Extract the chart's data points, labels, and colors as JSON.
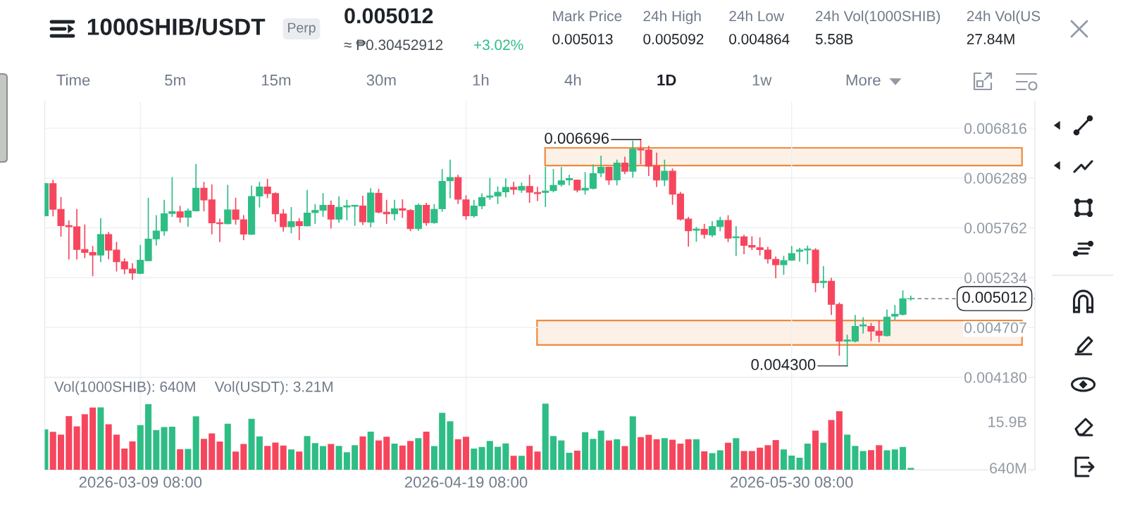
{
  "chart_data": [
    {
      "type": "other",
      "title": "1000SHIB/USDT",
      "annotations": [
        "Perp",
        "0.005012",
        "≈ ₱0.30452912",
        "+3.02%",
        "Mark Price",
        "0.005013",
        "24h High",
        "0.005092",
        "24h Low",
        "0.004864",
        "24h Vol(1000SHIB)",
        "5.58B",
        "24h Vol(US",
        "27.84M",
        "Time",
        "5m",
        "15m",
        "30m",
        "1h",
        "4h",
        "1D",
        "1w",
        "More"
      ]
    },
    {
      "type": "candlestick",
      "x": [
        "2026-02-25T08:00",
        "2026-02-26T08:00",
        "2026-02-27T08:00",
        "2026-02-28T08:00",
        "2026-03-01T08:00",
        "2026-03-02T08:00",
        "2026-03-03T08:00",
        "2026-03-04T08:00",
        "2026-03-05T08:00",
        "2026-03-06T08:00",
        "2026-03-07T08:00",
        "2026-03-08T08:00",
        "2026-03-09T08:00",
        "2026-03-10T08:00",
        "2026-03-11T08:00",
        "2026-03-12T08:00",
        "2026-03-13T08:00",
        "2026-03-14T08:00",
        "2026-03-15T08:00",
        "2026-03-16T08:00",
        "2026-03-17T08:00",
        "2026-03-18T08:00",
        "2026-03-19T08:00",
        "2026-03-20T08:00",
        "2026-03-21T08:00",
        "2026-03-22T08:00",
        "2026-03-23T08:00",
        "2026-03-24T08:00",
        "2026-03-25T08:00",
        "2026-03-26T08:00",
        "2026-03-27T08:00",
        "2026-03-28T08:00",
        "2026-03-29T08:00",
        "2026-03-30T08:00",
        "2026-03-31T08:00",
        "2026-04-01T08:00",
        "2026-04-02T08:00",
        "2026-04-03T08:00",
        "2026-04-04T08:00",
        "2026-04-05T08:00",
        "2026-04-06T08:00",
        "2026-04-07T08:00",
        "2026-04-08T08:00",
        "2026-04-09T08:00",
        "2026-04-10T08:00",
        "2026-04-11T08:00",
        "2026-04-12T08:00",
        "2026-04-13T08:00",
        "2026-04-14T08:00",
        "2026-04-15T08:00",
        "2026-04-16T08:00",
        "2026-04-17T08:00",
        "2026-04-18T08:00",
        "2026-04-19T08:00",
        "2026-04-20T08:00",
        "2026-04-21T08:00",
        "2026-04-22T08:00",
        "2026-04-23T08:00",
        "2026-04-24T08:00",
        "2026-04-25T08:00",
        "2026-04-26T08:00",
        "2026-04-27T08:00",
        "2026-04-28T08:00",
        "2026-04-29T08:00",
        "2026-04-30T08:00",
        "2026-05-01T08:00",
        "2026-05-02T08:00",
        "2026-05-03T08:00",
        "2026-05-04T08:00",
        "2026-05-05T08:00",
        "2026-05-06T08:00",
        "2026-05-07T08:00",
        "2026-05-08T08:00",
        "2026-05-09T08:00",
        "2026-05-10T08:00",
        "2026-05-11T08:00",
        "2026-05-12T08:00",
        "2026-05-13T08:00",
        "2026-05-14T08:00",
        "2026-05-15T08:00",
        "2026-05-16T08:00",
        "2026-05-17T08:00",
        "2026-05-18T08:00",
        "2026-05-19T08:00",
        "2026-05-20T08:00",
        "2026-05-21T08:00",
        "2026-05-22T08:00",
        "2026-05-23T08:00",
        "2026-05-24T08:00",
        "2026-05-25T08:00",
        "2026-05-26T08:00",
        "2026-05-27T08:00",
        "2026-05-28T08:00",
        "2026-05-29T08:00",
        "2026-05-30T08:00",
        "2026-05-31T08:00",
        "2026-06-01T08:00",
        "2026-06-02T08:00",
        "2026-06-03T08:00",
        "2026-06-04T08:00",
        "2026-06-05T08:00",
        "2026-06-06T08:00",
        "2026-06-07T08:00",
        "2026-06-08T08:00",
        "2026-06-09T08:00",
        "2026-06-10T08:00",
        "2026-06-11T08:00",
        "2026-06-12T08:00",
        "2026-06-13T08:00",
        "2026-06-14T08:00"
      ],
      "ohlc": [
        [
          0.005889,
          0.00623,
          0.005889,
          0.00623
        ],
        [
          0.00623,
          0.006264,
          0.005889,
          0.005958
        ],
        [
          0.005958,
          0.006082,
          0.005674,
          0.005785
        ],
        [
          0.005785,
          0.005834,
          0.005432,
          0.005773
        ],
        [
          0.005773,
          0.005956,
          0.005432,
          0.005533
        ],
        [
          0.005533,
          0.005792,
          0.005447,
          0.005501
        ],
        [
          0.005501,
          0.005563,
          0.005256,
          0.005474
        ],
        [
          0.005474,
          0.005859,
          0.005405,
          0.005691
        ],
        [
          0.005691,
          0.005711,
          0.005434,
          0.005526
        ],
        [
          0.005526,
          0.005607,
          0.005306,
          0.005402
        ],
        [
          0.005402,
          0.005434,
          0.005276,
          0.005326
        ],
        [
          0.005326,
          0.005382,
          0.005217,
          0.005284
        ],
        [
          0.005279,
          0.005575,
          0.005278,
          0.005419
        ],
        [
          0.005414,
          0.006072,
          0.005414,
          0.005642
        ],
        [
          0.005644,
          0.005889,
          0.00558,
          0.005728
        ],
        [
          0.005728,
          0.006052,
          0.005684,
          0.005911
        ],
        [
          0.005914,
          0.006292,
          0.005884,
          0.005933
        ],
        [
          0.005931,
          0.005988,
          0.005822,
          0.005874
        ],
        [
          0.005874,
          0.00596,
          0.00578,
          0.005941
        ],
        [
          0.005941,
          0.006432,
          0.005941,
          0.00618
        ],
        [
          0.00618,
          0.006242,
          0.005943,
          0.006057
        ],
        [
          0.006057,
          0.006215,
          0.005699,
          0.005815
        ],
        [
          0.005815,
          0.005852,
          0.005617,
          0.005805
        ],
        [
          0.005805,
          0.00621,
          0.005805,
          0.005951
        ],
        [
          0.005951,
          0.006074,
          0.005802,
          0.005852
        ],
        [
          0.005847,
          0.005891,
          0.005637,
          0.005696
        ],
        [
          0.005694,
          0.006203,
          0.005694,
          0.006094
        ],
        [
          0.006099,
          0.006242,
          0.005983,
          0.006193
        ],
        [
          0.006193,
          0.006274,
          0.006082,
          0.006124
        ],
        [
          0.006124,
          0.006131,
          0.005832,
          0.005909
        ],
        [
          0.005909,
          0.005953,
          0.005728,
          0.005773
        ],
        [
          0.005773,
          0.005975,
          0.005711,
          0.005827
        ],
        [
          0.005827,
          0.005859,
          0.005637,
          0.005785
        ],
        [
          0.005783,
          0.006156,
          0.005783,
          0.005918
        ],
        [
          0.005923,
          0.006005,
          0.00581,
          0.005946
        ],
        [
          0.005946,
          0.006124,
          0.005884,
          0.006
        ],
        [
          0.006,
          0.006044,
          0.00576,
          0.005854
        ],
        [
          0.005854,
          0.006089,
          0.005822,
          0.00598
        ],
        [
          0.005983,
          0.006052,
          0.005847,
          0.005995
        ],
        [
          0.00599,
          0.006,
          0.00579,
          0.006
        ],
        [
          0.005993,
          0.006094,
          0.005797,
          0.005825
        ],
        [
          0.005822,
          0.006175,
          0.005773,
          0.006131
        ],
        [
          0.006126,
          0.006168,
          0.005921,
          0.005928
        ],
        [
          0.005928,
          0.006052,
          0.00581,
          0.005909
        ],
        [
          0.005909,
          0.006052,
          0.005847,
          0.005963
        ],
        [
          0.005965,
          0.006057,
          0.005872,
          0.005948
        ],
        [
          0.005946,
          0.005953,
          0.005733,
          0.005753
        ],
        [
          0.005753,
          0.006012,
          0.005736,
          0.006
        ],
        [
          0.006,
          0.00602,
          0.00579,
          0.005817
        ],
        [
          0.005817,
          0.006007,
          0.005812,
          0.005958
        ],
        [
          0.005963,
          0.006378,
          0.005938,
          0.006254
        ],
        [
          0.006259,
          0.006477,
          0.006082,
          0.006294
        ],
        [
          0.006294,
          0.006316,
          0.00602,
          0.006064
        ],
        [
          0.006057,
          0.006099,
          0.005854,
          0.005889
        ],
        [
          0.005889,
          0.006052,
          0.005876,
          0.005993
        ],
        [
          0.005995,
          0.006121,
          0.005965,
          0.006082
        ],
        [
          0.006086,
          0.006284,
          0.006064,
          0.006099
        ],
        [
          0.006099,
          0.006193,
          0.00602,
          0.006138
        ],
        [
          0.006143,
          0.006279,
          0.006091,
          0.00619
        ],
        [
          0.00619,
          0.006242,
          0.006119,
          0.006168
        ],
        [
          0.006161,
          0.006235,
          0.006138,
          0.0062
        ],
        [
          0.0062,
          0.006316,
          0.006032,
          0.006138
        ],
        [
          0.006136,
          0.00619,
          0.006052,
          0.006124
        ],
        [
          0.006136,
          0.006403,
          0.005988,
          0.006151
        ],
        [
          0.006156,
          0.006378,
          0.006143,
          0.00621
        ],
        [
          0.00622,
          0.006398,
          0.006205,
          0.006259
        ],
        [
          0.006269,
          0.006316,
          0.006217,
          0.006284
        ],
        [
          0.006267,
          0.006267,
          0.006143,
          0.006161
        ],
        [
          0.006161,
          0.006346,
          0.006119,
          0.00618
        ],
        [
          0.00618,
          0.006427,
          0.006175,
          0.006336
        ],
        [
          0.006341,
          0.006519,
          0.006304,
          0.006403
        ],
        [
          0.006403,
          0.006403,
          0.006222,
          0.006267
        ],
        [
          0.006269,
          0.006477,
          0.006217,
          0.006447
        ],
        [
          0.006447,
          0.006509,
          0.006336,
          0.006361
        ],
        [
          0.006361,
          0.006679,
          0.006299,
          0.006595
        ],
        [
          0.006595,
          0.006696,
          0.00644,
          0.006586
        ],
        [
          0.006586,
          0.006625,
          0.006316,
          0.006415
        ],
        [
          0.006415,
          0.006551,
          0.0062,
          0.006267
        ],
        [
          0.006267,
          0.006477,
          0.00621,
          0.006361
        ],
        [
          0.006361,
          0.006383,
          0.006012,
          0.006119
        ],
        [
          0.006119,
          0.006136,
          0.005844,
          0.005854
        ],
        [
          0.005854,
          0.005872,
          0.005568,
          0.005731
        ],
        [
          0.005736,
          0.005765,
          0.00562,
          0.005748
        ],
        [
          0.005746,
          0.005797,
          0.005654,
          0.005691
        ],
        [
          0.005686,
          0.005827,
          0.005669,
          0.005775
        ],
        [
          0.005775,
          0.005872,
          0.005731,
          0.005839
        ],
        [
          0.005839,
          0.005889,
          0.005617,
          0.005652
        ],
        [
          0.005657,
          0.005773,
          0.005469,
          0.005666
        ],
        [
          0.005666,
          0.005681,
          0.005489,
          0.005575
        ],
        [
          0.005575,
          0.005666,
          0.005533,
          0.005558
        ],
        [
          0.00555,
          0.005654,
          0.005476,
          0.005531
        ],
        [
          0.005526,
          0.005555,
          0.00539,
          0.005432
        ],
        [
          0.005427,
          0.005452,
          0.005234,
          0.00537
        ],
        [
          0.00537,
          0.005459,
          0.005271,
          0.005414
        ],
        [
          0.005419,
          0.005563,
          0.005419,
          0.005489
        ],
        [
          0.005513,
          0.005543,
          0.00541,
          0.005526
        ],
        [
          0.005528,
          0.005568,
          0.005382,
          0.005538
        ],
        [
          0.005526,
          0.00554,
          0.005086,
          0.00518
        ],
        [
          0.005182,
          0.00535,
          0.005128,
          0.005197
        ],
        [
          0.005197,
          0.005227,
          0.004846,
          0.004952
        ],
        [
          0.00495,
          0.004965,
          0.004414,
          0.004562
        ],
        [
          0.004562,
          0.004624,
          0.0043,
          0.004574
        ],
        [
          0.004562,
          0.004834,
          0.004555,
          0.004718
        ],
        [
          0.004723,
          0.004809,
          0.004649,
          0.004735
        ],
        [
          0.004718,
          0.004747,
          0.004569,
          0.004668
        ],
        [
          0.004668,
          0.004775,
          0.004557,
          0.004624
        ],
        [
          0.004619,
          0.004891,
          0.004619,
          0.004817
        ],
        [
          0.004826,
          0.004938,
          0.004792,
          0.004846
        ],
        [
          0.004846,
          0.005093,
          0.004839,
          0.00501
        ],
        [
          0.00501,
          0.005039,
          0.004999,
          0.005012
        ]
      ],
      "colors": [
        "#2ebd85",
        "#f6465d",
        "#f6465d",
        "#f6465d",
        "#f6465d",
        "#f6465d",
        "#f6465d",
        "#2ebd85",
        "#f6465d",
        "#f6465d",
        "#f6465d",
        "#f6465d",
        "#2ebd85",
        "#2ebd85",
        "#2ebd85",
        "#2ebd85",
        "#2ebd85",
        "#f6465d",
        "#2ebd85",
        "#2ebd85",
        "#f6465d",
        "#f6465d",
        "#f6465d",
        "#2ebd85",
        "#f6465d",
        "#f6465d",
        "#2ebd85",
        "#2ebd85",
        "#f6465d",
        "#f6465d",
        "#f6465d",
        "#2ebd85",
        "#f6465d",
        "#2ebd85",
        "#2ebd85",
        "#2ebd85",
        "#f6465d",
        "#2ebd85",
        "#2ebd85",
        "#2ebd85",
        "#f6465d",
        "#2ebd85",
        "#f6465d",
        "#f6465d",
        "#2ebd85",
        "#f6465d",
        "#f6465d",
        "#2ebd85",
        "#f6465d",
        "#2ebd85",
        "#2ebd85",
        "#2ebd85",
        "#f6465d",
        "#f6465d",
        "#2ebd85",
        "#2ebd85",
        "#2ebd85",
        "#2ebd85",
        "#2ebd85",
        "#f6465d",
        "#2ebd85",
        "#f6465d",
        "#f6465d",
        "#2ebd85",
        "#2ebd85",
        "#2ebd85",
        "#2ebd85",
        "#f6465d",
        "#2ebd85",
        "#2ebd85",
        "#2ebd85",
        "#f6465d",
        "#2ebd85",
        "#f6465d",
        "#2ebd85",
        "#f6465d",
        "#f6465d",
        "#f6465d",
        "#2ebd85",
        "#f6465d",
        "#f6465d",
        "#f6465d",
        "#2ebd85",
        "#f6465d",
        "#2ebd85",
        "#2ebd85",
        "#f6465d",
        "#2ebd85",
        "#f6465d",
        "#f6465d",
        "#f6465d",
        "#f6465d",
        "#f6465d",
        "#2ebd85",
        "#2ebd85",
        "#2ebd85",
        "#2ebd85",
        "#f6465d",
        "#2ebd85",
        "#f6465d",
        "#f6465d",
        "#2ebd85",
        "#2ebd85",
        "#2ebd85",
        "#f6465d",
        "#f6465d",
        "#2ebd85",
        "#2ebd85",
        "#2ebd85",
        "#2ebd85"
      ],
      "xlim": [
        "2026-02-25T07:00",
        "2026-06-29T23:00"
      ],
      "xticks": [
        "2026-03-09T08:00",
        "2026-04-19T08:00",
        "2026-05-30T08:00"
      ],
      "ylim": [
        0.00418,
        0.0071
      ],
      "yticks": [
        {
          "value": 0.00418,
          "label": "0.004180"
        },
        0.004707,
        0.005234,
        0.005762,
        0.006289,
        0.006816
      ],
      "tick_labels": "y",
      "grid": true,
      "annotations": [
        {
          "text": "0.006696",
          "x": "2026-05-11T08:00",
          "y": 0.006696
        },
        {
          "text": "0.004300",
          "x": "2026-06-06T08:00",
          "y": 0.0043
        }
      ],
      "ref_lines": [
        {
          "axis": "y",
          "value": 0.005012,
          "label": "0.005012",
          "line_style": "dashed",
          "color": "#5e6673"
        }
      ],
      "bands": [
        {
          "axis": "y",
          "from": 0.00642,
          "to": 0.006608,
          "color": "#ef8a3e"
        },
        {
          "axis": "y",
          "from": 0.004522,
          "to": 0.00478,
          "color": "#ef8a3e"
        }
      ]
    },
    {
      "type": "bar",
      "x": [
        "2026-02-25T08:00",
        "2026-02-26T08:00",
        "2026-02-27T08:00",
        "2026-02-28T08:00",
        "2026-03-01T08:00",
        "2026-03-02T08:00",
        "2026-03-03T08:00",
        "2026-03-04T08:00",
        "2026-03-05T08:00",
        "2026-03-06T08:00",
        "2026-03-07T08:00",
        "2026-03-08T08:00",
        "2026-03-09T08:00",
        "2026-03-10T08:00",
        "2026-03-11T08:00",
        "2026-03-12T08:00",
        "2026-03-13T08:00",
        "2026-03-14T08:00",
        "2026-03-15T08:00",
        "2026-03-16T08:00",
        "2026-03-17T08:00",
        "2026-03-18T08:00",
        "2026-03-19T08:00",
        "2026-03-20T08:00",
        "2026-03-21T08:00",
        "2026-03-22T08:00",
        "2026-03-23T08:00",
        "2026-03-24T08:00",
        "2026-03-25T08:00",
        "2026-03-26T08:00",
        "2026-03-27T08:00",
        "2026-03-28T08:00",
        "2026-03-29T08:00",
        "2026-03-30T08:00",
        "2026-03-31T08:00",
        "2026-04-01T08:00",
        "2026-04-02T08:00",
        "2026-04-03T08:00",
        "2026-04-04T08:00",
        "2026-04-05T08:00",
        "2026-04-06T08:00",
        "2026-04-07T08:00",
        "2026-04-08T08:00",
        "2026-04-09T08:00",
        "2026-04-10T08:00",
        "2026-04-11T08:00",
        "2026-04-12T08:00",
        "2026-04-13T08:00",
        "2026-04-14T08:00",
        "2026-04-15T08:00",
        "2026-04-16T08:00",
        "2026-04-17T08:00",
        "2026-04-18T08:00",
        "2026-04-19T08:00",
        "2026-04-20T08:00",
        "2026-04-21T08:00",
        "2026-04-22T08:00",
        "2026-04-23T08:00",
        "2026-04-24T08:00",
        "2026-04-25T08:00",
        "2026-04-26T08:00",
        "2026-04-27T08:00",
        "2026-04-28T08:00",
        "2026-04-29T08:00",
        "2026-04-30T08:00",
        "2026-05-01T08:00",
        "2026-05-02T08:00",
        "2026-05-03T08:00",
        "2026-05-04T08:00",
        "2026-05-05T08:00",
        "2026-05-06T08:00",
        "2026-05-07T08:00",
        "2026-05-08T08:00",
        "2026-05-09T08:00",
        "2026-05-10T08:00",
        "2026-05-11T08:00",
        "2026-05-12T08:00",
        "2026-05-13T08:00",
        "2026-05-14T08:00",
        "2026-05-15T08:00",
        "2026-05-16T08:00",
        "2026-05-17T08:00",
        "2026-05-18T08:00",
        "2026-05-19T08:00",
        "2026-05-20T08:00",
        "2026-05-21T08:00",
        "2026-05-22T08:00",
        "2026-05-23T08:00",
        "2026-05-24T08:00",
        "2026-05-25T08:00",
        "2026-05-26T08:00",
        "2026-05-27T08:00",
        "2026-05-28T08:00",
        "2026-05-29T08:00",
        "2026-05-30T08:00",
        "2026-05-31T08:00",
        "2026-06-01T08:00",
        "2026-06-02T08:00",
        "2026-06-03T08:00",
        "2026-06-04T08:00",
        "2026-06-05T08:00",
        "2026-06-06T08:00",
        "2026-06-07T08:00",
        "2026-06-08T08:00",
        "2026-06-09T08:00",
        "2026-06-10T08:00",
        "2026-06-11T08:00",
        "2026-06-12T08:00",
        "2026-06-13T08:00",
        "2026-06-14T08:00"
      ],
      "values": [
        13300000000.0,
        12500000000.0,
        11600000000.0,
        17700000000.0,
        14300000000.0,
        18300000000.0,
        20500000000.0,
        20600000000.0,
        15000000000.0,
        11600000000.0,
        7000000000.0,
        9400000000.0,
        14700000000.0,
        21600000000.0,
        13100000000.0,
        14100000000.0,
        14200000000.0,
        6800000000.0,
        6900000000.0,
        17600000000.0,
        10200000000.0,
        12000000000.0,
        9300000000.0,
        15200000000.0,
        6000000000.0,
        8500000000.0,
        16800000000.0,
        11000000000.0,
        7900000000.0,
        9000000000.0,
        8000000000.0,
        6700000000.0,
        6000000000.0,
        11100000000.0,
        8800000000.0,
        7800000000.0,
        8500000000.0,
        7900000000.0,
        5800000000.0,
        8100000000.0,
        11000000000.0,
        12600000000.0,
        9700000000.0,
        10900000000.0,
        8600000000.0,
        8000000000.0,
        9500000000.0,
        10400000000.0,
        12600000000.0,
        7800000000.0,
        18800000000.0,
        16000000000.0,
        10100000000.0,
        10900000000.0,
        7000000000.0,
        7500000000.0,
        9500000000.0,
        7600000000.0,
        8700000000.0,
        4600000000.0,
        4600000000.0,
        7900000000.0,
        6000000000.0,
        21800000000.0,
        11100000000.0,
        9700000000.0,
        5600000000.0,
        6300000000.0,
        12400000000.0,
        10200000000.0,
        12900000000.0,
        9700000000.0,
        10100000000.0,
        7800000000.0,
        17600000000.0,
        10800000000.0,
        11500000000.0,
        10100000000.0,
        10400000000.0,
        9900000000.0,
        8600000000.0,
        10100000000.0,
        10100000000.0,
        6100000000.0,
        5500000000.0,
        6400000000.0,
        8900000000.0,
        10400000000.0,
        6200000000.0,
        6200000000.0,
        7300000000.0,
        8100000000.0,
        9800000000.0,
        6700000000.0,
        4700000000.0,
        4000000000.0,
        8600000000.0,
        12900000000.0,
        8900000000.0,
        16400000000.0,
        19300000000.0,
        11600000000.0,
        7900000000.0,
        6200000000.0,
        6500000000.0,
        8100000000.0,
        6400000000.0,
        6700000000.0,
        7500000000.0,
        640000000.0
      ],
      "colors": [
        "#2ebd85",
        "#f6465d",
        "#f6465d",
        "#f6465d",
        "#f6465d",
        "#f6465d",
        "#f6465d",
        "#2ebd85",
        "#f6465d",
        "#f6465d",
        "#f6465d",
        "#f6465d",
        "#2ebd85",
        "#2ebd85",
        "#2ebd85",
        "#2ebd85",
        "#2ebd85",
        "#f6465d",
        "#2ebd85",
        "#2ebd85",
        "#f6465d",
        "#f6465d",
        "#f6465d",
        "#2ebd85",
        "#f6465d",
        "#f6465d",
        "#2ebd85",
        "#2ebd85",
        "#f6465d",
        "#f6465d",
        "#f6465d",
        "#2ebd85",
        "#f6465d",
        "#2ebd85",
        "#2ebd85",
        "#2ebd85",
        "#f6465d",
        "#2ebd85",
        "#2ebd85",
        "#2ebd85",
        "#f6465d",
        "#2ebd85",
        "#f6465d",
        "#f6465d",
        "#2ebd85",
        "#f6465d",
        "#f6465d",
        "#2ebd85",
        "#f6465d",
        "#2ebd85",
        "#2ebd85",
        "#2ebd85",
        "#f6465d",
        "#f6465d",
        "#2ebd85",
        "#2ebd85",
        "#2ebd85",
        "#2ebd85",
        "#2ebd85",
        "#f6465d",
        "#2ebd85",
        "#f6465d",
        "#f6465d",
        "#2ebd85",
        "#2ebd85",
        "#2ebd85",
        "#2ebd85",
        "#f6465d",
        "#2ebd85",
        "#2ebd85",
        "#2ebd85",
        "#f6465d",
        "#2ebd85",
        "#f6465d",
        "#2ebd85",
        "#f6465d",
        "#f6465d",
        "#f6465d",
        "#2ebd85",
        "#f6465d",
        "#f6465d",
        "#f6465d",
        "#2ebd85",
        "#f6465d",
        "#2ebd85",
        "#2ebd85",
        "#f6465d",
        "#2ebd85",
        "#f6465d",
        "#f6465d",
        "#f6465d",
        "#f6465d",
        "#f6465d",
        "#2ebd85",
        "#2ebd85",
        "#2ebd85",
        "#2ebd85",
        "#f6465d",
        "#2ebd85",
        "#f6465d",
        "#f6465d",
        "#2ebd85",
        "#2ebd85",
        "#2ebd85",
        "#f6465d",
        "#f6465d",
        "#2ebd85",
        "#2ebd85",
        "#2ebd85",
        "#2ebd85"
      ],
      "xlim": [
        "2026-02-25T07:00",
        "2026-06-29T23:00"
      ],
      "xticks": [
        {
          "value": "2026-03-09T08:00",
          "label": "2026-03-09 08:00"
        },
        {
          "value": "2026-04-19T08:00",
          "label": "2026-04-19 08:00"
        },
        {
          "value": "2026-05-30T08:00",
          "label": "2026-05-30 08:00"
        }
      ],
      "ylim": [
        0,
        30500000000.0
      ],
      "yticks": [
        {
          "value": 640000000.0,
          "label": "640M"
        },
        {
          "value": 15900000000.0,
          "label": "15.9B"
        }
      ],
      "grid": "x",
      "annotations": [
        "Vol(1000SHIB): 640M",
        "Vol(USDT): 3.21M"
      ]
    }
  ]
}
